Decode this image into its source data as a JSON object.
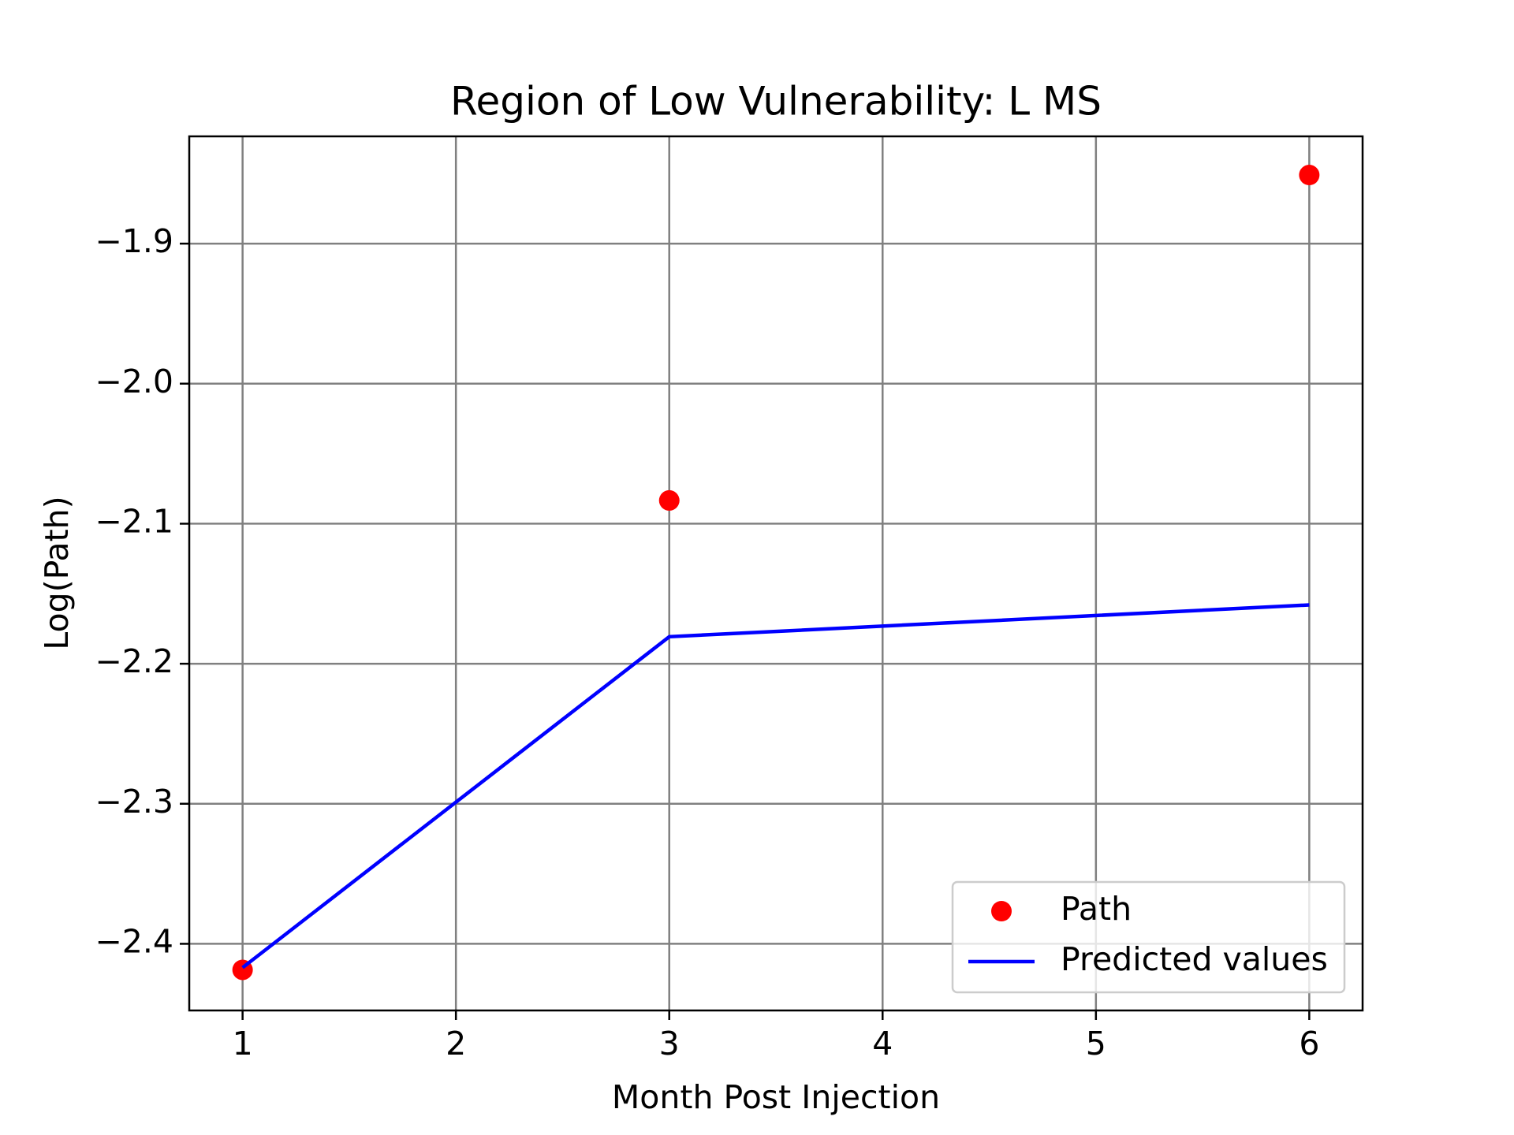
{
  "chart_data": {
    "type": "line",
    "title": "Region of Low Vulnerability: L MS",
    "x_label": "Month Post Injection",
    "y_label": "Log(Path)",
    "x": [
      1,
      3,
      6
    ],
    "series": [
      {
        "name": "Path",
        "color": "#ff0000",
        "style": "markers",
        "values": [
          -2.4186,
          -2.0834,
          -1.851
        ]
      },
      {
        "name": "Predicted values",
        "color": "#0000ff",
        "style": "line",
        "values": [
          -2.417,
          -2.1807,
          -2.158
        ]
      }
    ],
    "xlim": [
      0.75,
      6.25
    ],
    "ylim": [
      -2.4476,
      -1.8234
    ],
    "xticks": [
      1,
      2,
      3,
      4,
      5,
      6
    ],
    "yticks": [
      {
        "value": -2.4,
        "label": "−2.4"
      },
      {
        "value": -2.3,
        "label": "−2.3"
      },
      {
        "value": -2.2,
        "label": "−2.2"
      },
      {
        "value": -2.1,
        "label": "−2.1"
      },
      {
        "value": -2.0,
        "label": "−2.0"
      },
      {
        "value": -1.9,
        "label": "−1.9"
      }
    ],
    "grid": true,
    "legend": "lower right"
  }
}
